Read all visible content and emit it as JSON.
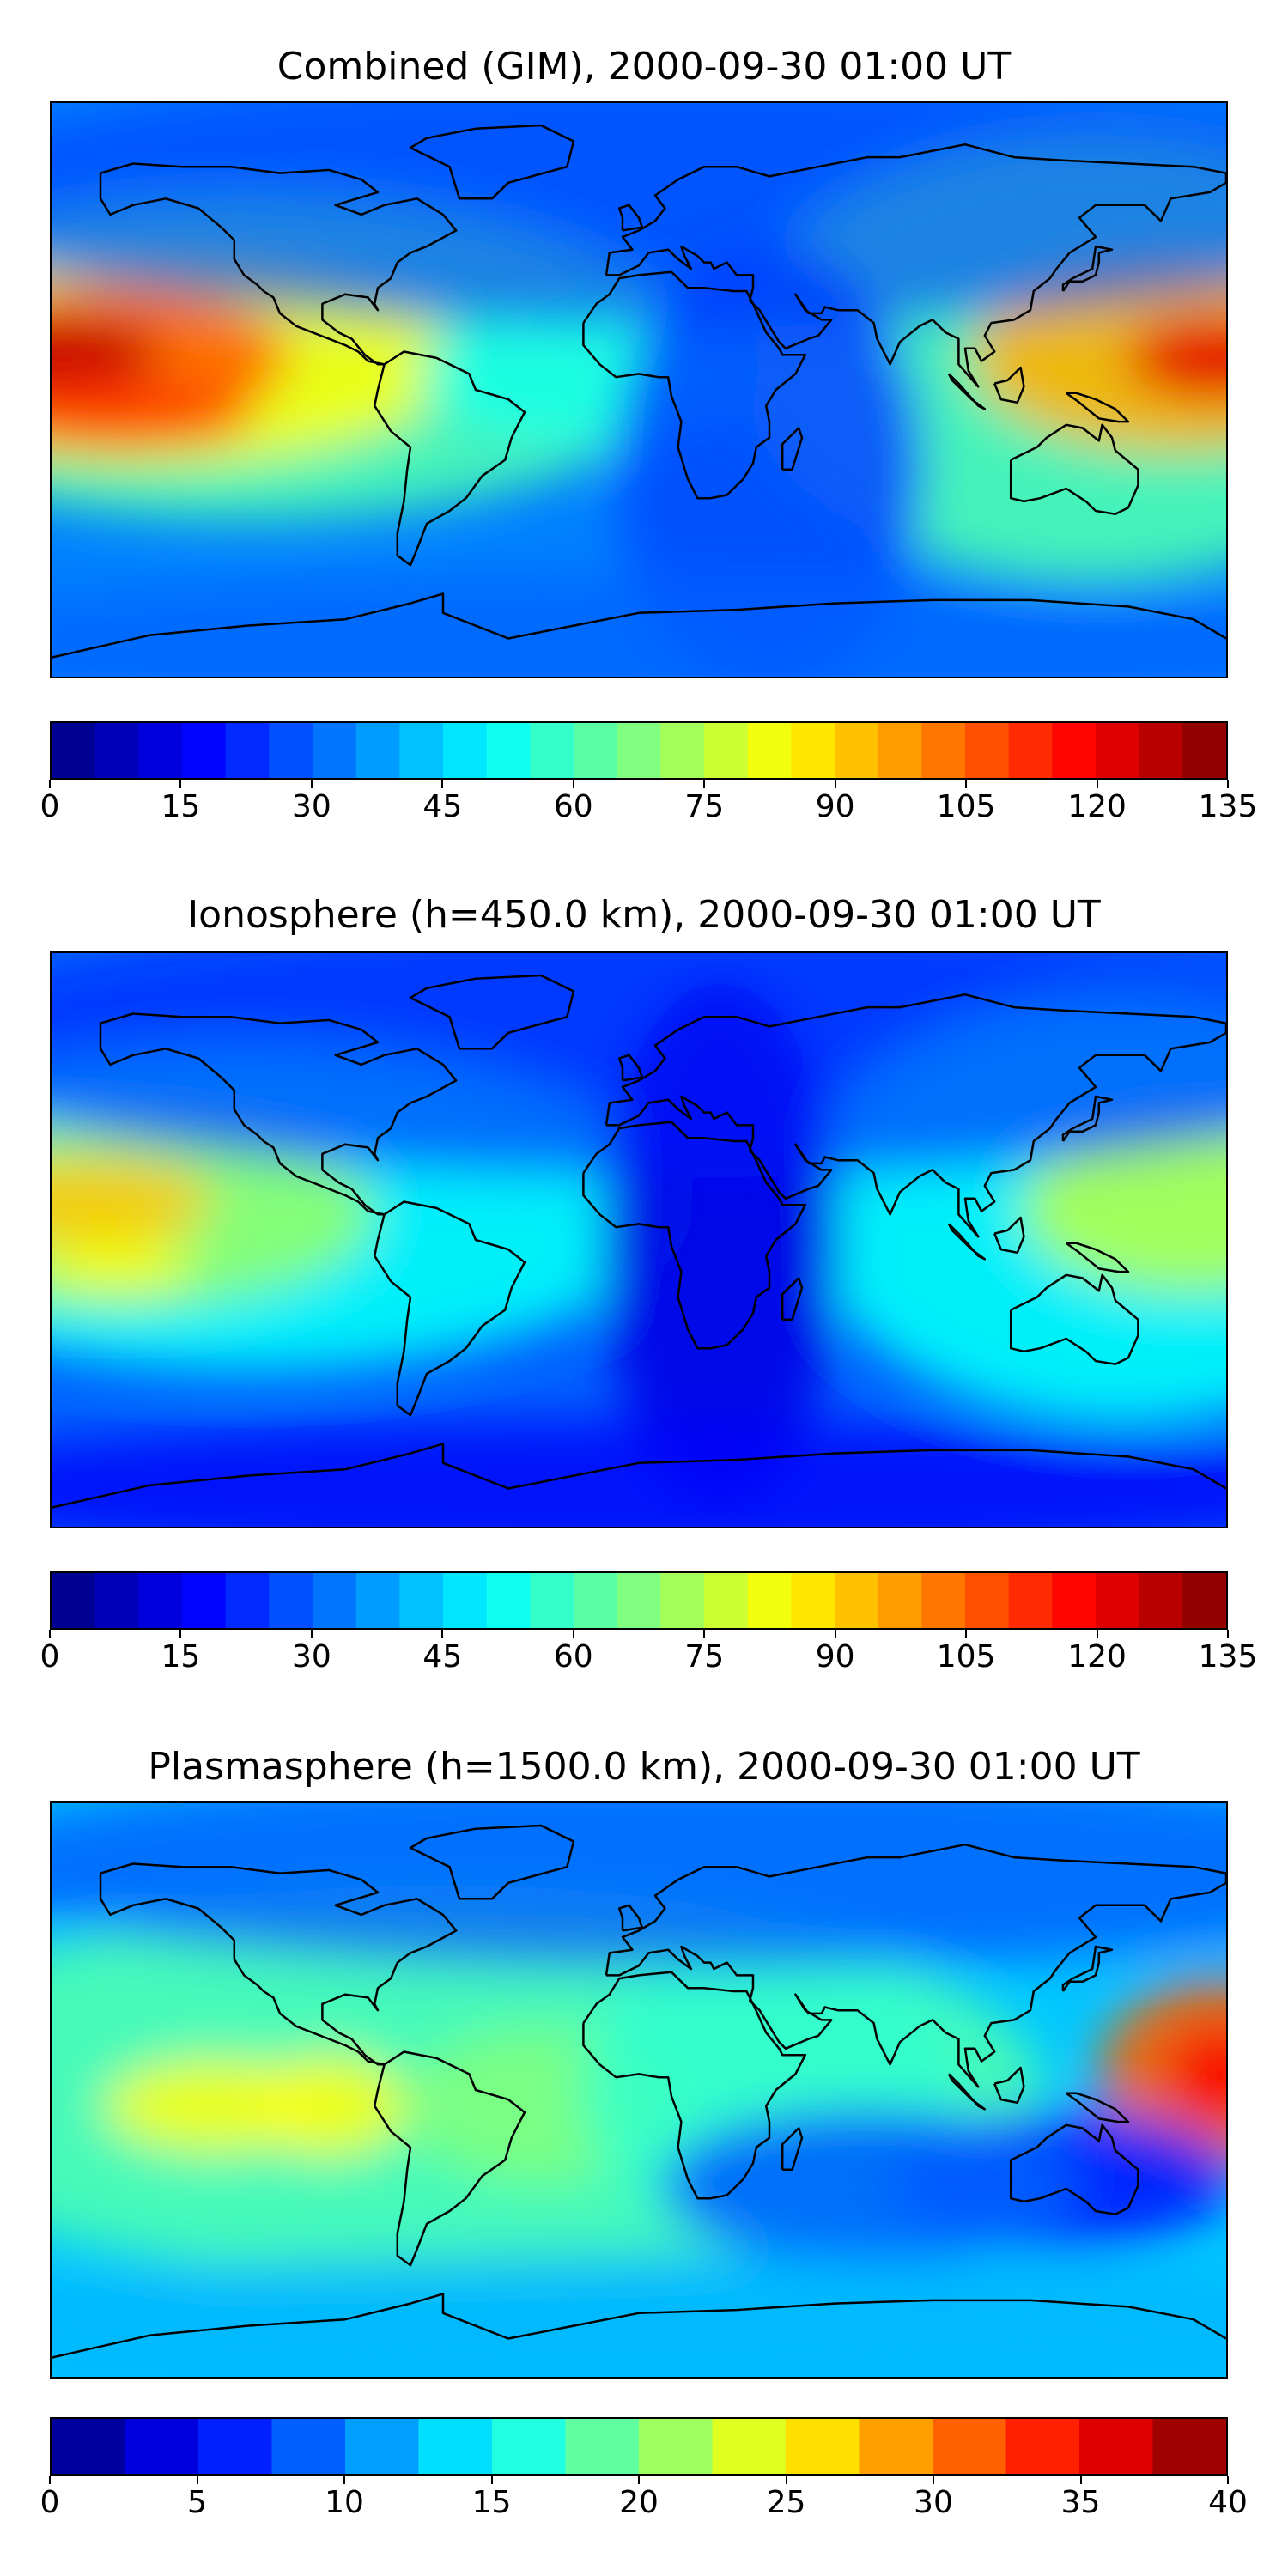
{
  "chart_data": [
    {
      "type": "heatmap",
      "title": "Combined (GIM), 2000-09-30 01:00 UT",
      "colormap": "jet",
      "colorbar": {
        "min": 0,
        "max": 135,
        "step": 5,
        "ticks": [
          "0",
          "15",
          "30",
          "45",
          "60",
          "75",
          "90",
          "105",
          "120",
          "135"
        ]
      },
      "basemap": "world coastlines, equirectangular",
      "hotspots": [
        {
          "region": "eastern Pacific (west edge)",
          "lon": -178,
          "lat": 8,
          "value": 130
        },
        {
          "region": "eastern Pacific south band",
          "lon": -160,
          "lat": -8,
          "value": 110
        },
        {
          "region": "western Pacific (east edge)",
          "lon": 178,
          "lat": 10,
          "value": 125
        },
        {
          "region": "Atlantic / west Africa",
          "lon": -10,
          "lat": 5,
          "value": 50
        },
        {
          "region": "Africa / Indian Ocean minimum",
          "lon": 40,
          "lat": -20,
          "value": 15
        }
      ]
    },
    {
      "type": "heatmap",
      "title": "Ionosphere  (h=450.0 km), 2000-09-30 01:00 UT",
      "colormap": "jet",
      "colorbar": {
        "min": 0,
        "max": 135,
        "step": 5,
        "ticks": [
          "0",
          "15",
          "30",
          "45",
          "60",
          "75",
          "90",
          "105",
          "120",
          "135"
        ]
      },
      "basemap": "world coastlines, equirectangular",
      "hotspots": [
        {
          "region": "eastern Pacific (west edge)",
          "lon": -170,
          "lat": 10,
          "value": 100
        },
        {
          "region": "eastern Pacific south",
          "lon": -160,
          "lat": -8,
          "value": 85
        },
        {
          "region": "western Pacific (east edge)",
          "lon": 178,
          "lat": 10,
          "value": 85
        },
        {
          "region": "Africa minimum",
          "lon": 25,
          "lat": 0,
          "value": 5
        }
      ]
    },
    {
      "type": "heatmap",
      "title": "Plasmasphere (h=1500.0 km), 2000-09-30 01:00 UT",
      "colormap": "jet",
      "colorbar": {
        "min": 0,
        "max": 40,
        "step": 2.5,
        "ticks": [
          "0",
          "5",
          "10",
          "15",
          "20",
          "25",
          "30",
          "35",
          "40"
        ]
      },
      "basemap": "world coastlines, equirectangular",
      "hotspots": [
        {
          "region": "western Pacific (east edge)",
          "lon": 178,
          "lat": 5,
          "value": 35
        },
        {
          "region": "eastern Pacific",
          "lon": -130,
          "lat": -5,
          "value": 27
        },
        {
          "region": "west of South America",
          "lon": -95,
          "lat": -5,
          "value": 27
        },
        {
          "region": "South Atlantic",
          "lon": -30,
          "lat": -5,
          "value": 20
        },
        {
          "region": "Australia minimum",
          "lon": 135,
          "lat": -25,
          "value": 6
        }
      ]
    }
  ]
}
